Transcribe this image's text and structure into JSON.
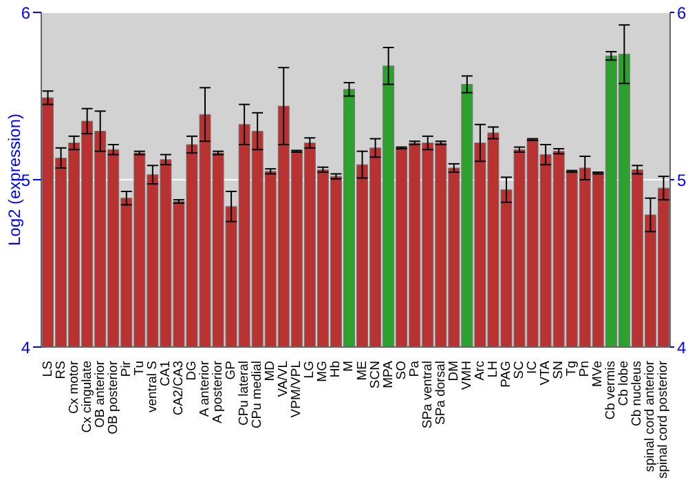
{
  "chart_data": {
    "type": "bar",
    "ylabel": "Log2 (expression)",
    "categories": [
      "LS",
      "RS",
      "Cx motor",
      "Cx cingulate",
      "OB anterior",
      "OB posterior",
      "Pir",
      "Tu",
      "ventral S",
      "CA1",
      "CA2/CA3",
      "DG",
      "A anterior",
      "A posterior",
      "GP",
      "CPu lateral",
      "CPu medial",
      "MD",
      "VA/VL",
      "VPM/VPL",
      "LG",
      "MG",
      "Hb",
      "M",
      "ME",
      "SCN",
      "MPA",
      "SO",
      "Pa",
      "SPa ventral",
      "SPa dorsal",
      "DM",
      "VMH",
      "Arc",
      "LH",
      "PAG",
      "SC",
      "IC",
      "VTA",
      "SN",
      "Tg",
      "Pn",
      "MVe",
      "Cb vermis",
      "Cb lobe",
      "Cb nucleus",
      "spinal cord anterior",
      "spinal cord posterior"
    ],
    "values": [
      5.49,
      5.13,
      5.22,
      5.35,
      5.29,
      5.18,
      4.89,
      5.16,
      5.03,
      5.12,
      4.87,
      5.21,
      5.39,
      5.16,
      4.84,
      5.33,
      5.29,
      5.05,
      5.44,
      5.17,
      5.22,
      5.06,
      5.02,
      5.54,
      5.09,
      5.19,
      5.68,
      5.19,
      5.22,
      5.22,
      5.22,
      5.07,
      5.57,
      5.22,
      5.28,
      4.94,
      5.18,
      5.24,
      5.15,
      5.17,
      5.05,
      5.07,
      5.04,
      5.74,
      5.75,
      5.06,
      4.79,
      4.95
    ],
    "errors": [
      0.04,
      0.06,
      0.04,
      0.075,
      0.12,
      0.03,
      0.04,
      0.01,
      0.055,
      0.03,
      0.01,
      0.05,
      0.16,
      0.01,
      0.09,
      0.12,
      0.11,
      0.015,
      0.23,
      0.005,
      0.03,
      0.015,
      0.015,
      0.04,
      0.08,
      0.055,
      0.11,
      0.005,
      0.01,
      0.04,
      0.01,
      0.025,
      0.05,
      0.11,
      0.035,
      0.075,
      0.015,
      0.005,
      0.06,
      0.015,
      0.005,
      0.07,
      0.005,
      0.025,
      0.175,
      0.025,
      0.1,
      0.07
    ],
    "colors": [
      "#b83232",
      "#b83232",
      "#b83232",
      "#b83232",
      "#b83232",
      "#b83232",
      "#b83232",
      "#b83232",
      "#b83232",
      "#b83232",
      "#b83232",
      "#b83232",
      "#b83232",
      "#b83232",
      "#b83232",
      "#b83232",
      "#b83232",
      "#b83232",
      "#b83232",
      "#b83232",
      "#b83232",
      "#b83232",
      "#b83232",
      "#2ea02e",
      "#b83232",
      "#b83232",
      "#2ea02e",
      "#b83232",
      "#b83232",
      "#b83232",
      "#b83232",
      "#b83232",
      "#2ea02e",
      "#b83232",
      "#b83232",
      "#b83232",
      "#b83232",
      "#b83232",
      "#b83232",
      "#b83232",
      "#b83232",
      "#b83232",
      "#b83232",
      "#2ea02e",
      "#2ea02e",
      "#b83232",
      "#b83232",
      "#b83232"
    ],
    "ylim": [
      4,
      6
    ],
    "yticks": [
      4,
      5,
      6
    ],
    "y2lim": [
      4,
      6
    ],
    "y2ticks": [
      4,
      5,
      6
    ],
    "grid": "y"
  }
}
